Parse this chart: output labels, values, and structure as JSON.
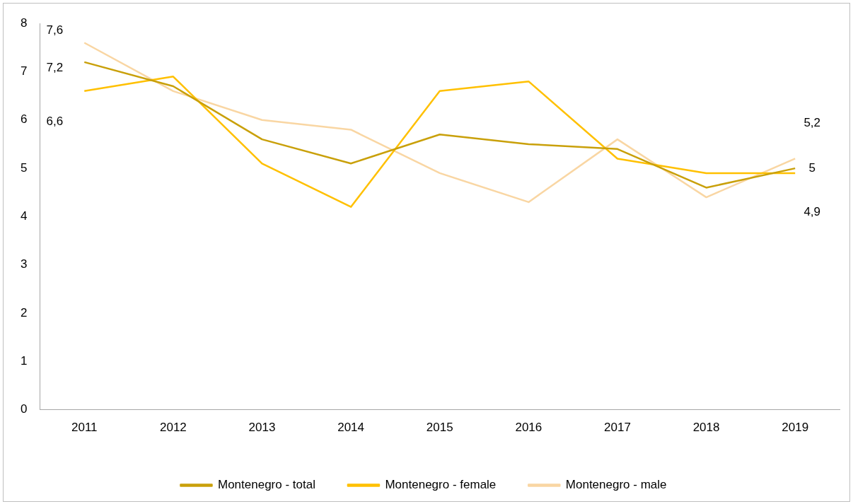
{
  "chart_data": {
    "type": "line",
    "categories": [
      "2011",
      "2012",
      "2013",
      "2014",
      "2015",
      "2016",
      "2017",
      "2018",
      "2019"
    ],
    "ylim": [
      0,
      8
    ],
    "yticks": [
      0,
      1,
      2,
      3,
      4,
      5,
      6,
      7,
      8
    ],
    "grid": false,
    "legend": "bottom",
    "marker": "none",
    "series": [
      {
        "name": "Montenegro - total",
        "color": "#c9a00a",
        "values": [
          7.2,
          6.7,
          5.6,
          5.1,
          5.7,
          5.5,
          5.4,
          4.6,
          5.0
        ],
        "value_labels": [
          "7,2",
          null,
          null,
          null,
          null,
          null,
          null,
          null,
          "5"
        ]
      },
      {
        "name": "Montenegro - female",
        "color": "#ffc000",
        "values": [
          6.6,
          6.9,
          5.1,
          4.2,
          6.6,
          6.8,
          5.2,
          4.9,
          4.9
        ],
        "value_labels": [
          "6,6",
          null,
          null,
          null,
          null,
          null,
          null,
          null,
          "4,9"
        ]
      },
      {
        "name": "Montenegro - male",
        "color": "#f9d6a3",
        "values": [
          7.6,
          6.6,
          6.0,
          5.8,
          4.9,
          4.3,
          5.6,
          4.4,
          5.2
        ],
        "value_labels": [
          "7,6",
          null,
          null,
          null,
          null,
          null,
          null,
          null,
          "5,2"
        ]
      }
    ]
  }
}
